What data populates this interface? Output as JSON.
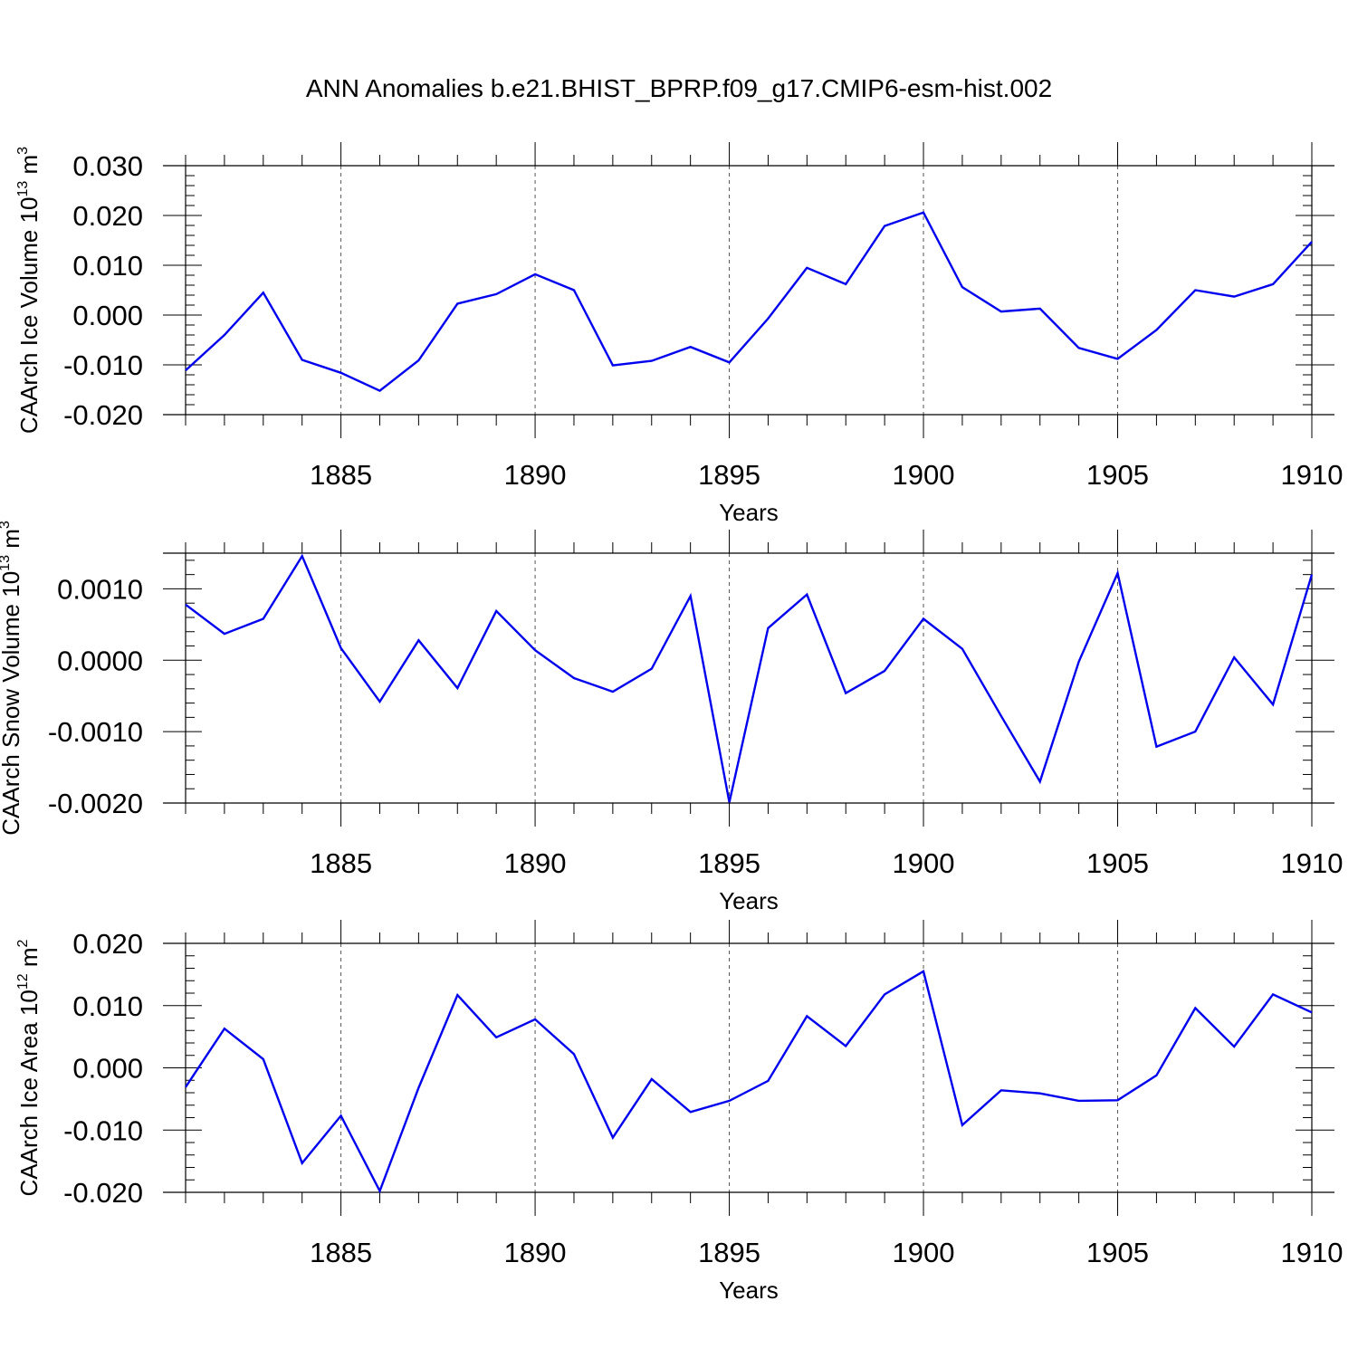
{
  "title": "ANN Anomalies b.e21.BHIST_BPRP.f09_g17.CMIP6-esm-hist.002",
  "line_color": "#0000ee",
  "chart_data": [
    {
      "type": "line",
      "ylabel": "CAArch Ice Volume 10",
      "ylabel_sup": "13",
      "ylabel_unit": "m",
      "ylabel_unit_sup": "3",
      "xlabel": "Years",
      "xlim": [
        1881,
        1910
      ],
      "ylim": [
        -0.02,
        0.03
      ],
      "yticks": [
        -0.02,
        -0.01,
        0.0,
        0.01,
        0.02,
        0.03
      ],
      "ytick_labels": [
        "-0.020",
        "-0.010",
        "0.000",
        "0.010",
        "0.020",
        "0.030"
      ],
      "xticks": [
        1885,
        1890,
        1895,
        1900,
        1905,
        1910
      ],
      "xtick_labels": [
        "1885",
        "1890",
        "1895",
        "1900",
        "1905",
        "1910"
      ],
      "grid": "vertical dashed at major x ticks",
      "series": [
        {
          "x": [
            1881,
            1882,
            1883,
            1884,
            1885,
            1886,
            1887,
            1888,
            1889,
            1890,
            1891,
            1892,
            1893,
            1894,
            1895,
            1896,
            1897,
            1898,
            1899,
            1900,
            1901,
            1902,
            1903,
            1904,
            1905,
            1906,
            1907,
            1908,
            1909,
            1910
          ],
          "values": [
            -0.0111,
            -0.004,
            0.0045,
            -0.009,
            -0.0116,
            -0.0152,
            -0.0091,
            0.0023,
            0.0042,
            0.0082,
            0.005,
            -0.0101,
            -0.0092,
            -0.0064,
            -0.0095,
            -0.0007,
            0.0095,
            0.0062,
            0.0179,
            0.0206,
            0.0056,
            0.0007,
            0.0013,
            -0.0066,
            -0.0088,
            -0.003,
            0.005,
            0.0037,
            0.0062,
            0.0147
          ]
        }
      ]
    },
    {
      "type": "line",
      "ylabel": "CAArch Snow Volume 10",
      "ylabel_sup": "13",
      "ylabel_unit": "m",
      "ylabel_unit_sup": "3",
      "xlabel": "Years",
      "xlim": [
        1881,
        1910
      ],
      "ylim": [
        -0.002,
        0.0015
      ],
      "yticks": [
        -0.002,
        -0.001,
        0.0,
        0.001
      ],
      "ytick_labels": [
        "-0.0020",
        "-0.0010",
        "0.0000",
        "0.0010"
      ],
      "xticks": [
        1885,
        1890,
        1895,
        1900,
        1905,
        1910
      ],
      "xtick_labels": [
        "1885",
        "1890",
        "1895",
        "1900",
        "1905",
        "1910"
      ],
      "grid": "vertical dashed at major x ticks",
      "series": [
        {
          "x": [
            1881,
            1882,
            1883,
            1884,
            1885,
            1886,
            1887,
            1888,
            1889,
            1890,
            1891,
            1892,
            1893,
            1894,
            1895,
            1896,
            1897,
            1898,
            1899,
            1900,
            1901,
            1902,
            1903,
            1904,
            1905,
            1906,
            1907,
            1908,
            1909,
            1910
          ],
          "values": [
            0.00078,
            0.00037,
            0.00058,
            0.00146,
            0.00017,
            -0.00058,
            0.00028,
            -0.00039,
            0.00069,
            0.00014,
            -0.00025,
            -0.00044,
            -0.00012,
            0.0009,
            -0.00199,
            0.00045,
            0.00092,
            -0.00046,
            -0.00015,
            0.00058,
            0.00016,
            -0.00078,
            -0.0017,
            -2e-05,
            0.00122,
            -0.00121,
            -0.001,
            4e-05,
            -0.00062,
            0.0012
          ]
        }
      ]
    },
    {
      "type": "line",
      "ylabel": "CAArch Ice Area 10",
      "ylabel_sup": "12",
      "ylabel_unit": "m",
      "ylabel_unit_sup": "2",
      "xlabel": "Years",
      "xlim": [
        1881,
        1910
      ],
      "ylim": [
        -0.02,
        0.02
      ],
      "yticks": [
        -0.02,
        -0.01,
        0.0,
        0.01,
        0.02
      ],
      "ytick_labels": [
        "-0.020",
        "-0.010",
        "0.000",
        "0.010",
        "0.020"
      ],
      "xticks": [
        1885,
        1890,
        1895,
        1900,
        1905,
        1910
      ],
      "xtick_labels": [
        "1885",
        "1890",
        "1895",
        "1900",
        "1905",
        "1910"
      ],
      "grid": "vertical dashed at major x ticks",
      "series": [
        {
          "x": [
            1881,
            1882,
            1883,
            1884,
            1885,
            1886,
            1887,
            1888,
            1889,
            1890,
            1891,
            1892,
            1893,
            1894,
            1895,
            1896,
            1897,
            1898,
            1899,
            1900,
            1901,
            1902,
            1903,
            1904,
            1905,
            1906,
            1907,
            1908,
            1909,
            1910
          ],
          "values": [
            -0.0031,
            0.0063,
            0.0014,
            -0.0153,
            -0.0077,
            -0.0198,
            -0.0032,
            0.0117,
            0.0049,
            0.0078,
            0.0022,
            -0.0112,
            -0.0018,
            -0.0071,
            -0.0053,
            -0.0021,
            0.0083,
            0.0035,
            0.0118,
            0.0155,
            -0.0092,
            -0.0036,
            -0.0041,
            -0.0053,
            -0.0052,
            -0.0012,
            0.0096,
            0.0034,
            0.0118,
            0.0089
          ]
        }
      ]
    }
  ]
}
